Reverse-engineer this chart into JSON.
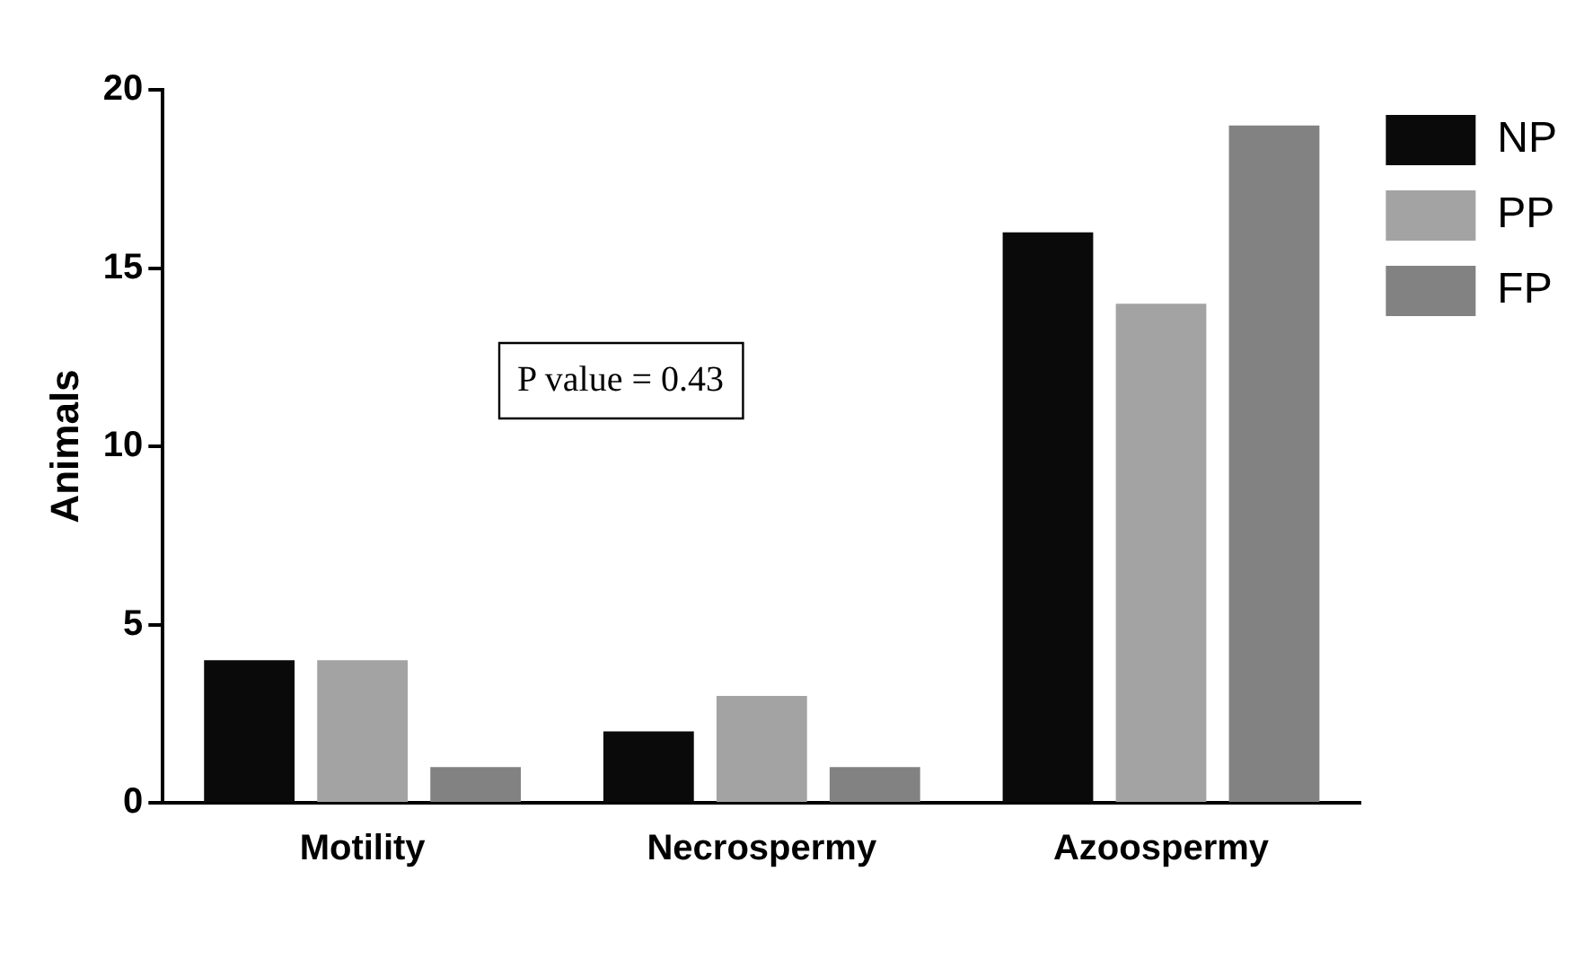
{
  "chart_data": {
    "type": "bar",
    "ylabel": "Animals",
    "categories": [
      "Motility",
      "Necrospermy",
      "Azoospermy"
    ],
    "series": [
      {
        "name": "NP",
        "color": "#0a0a0a",
        "values": [
          4,
          2,
          16
        ]
      },
      {
        "name": "PP",
        "color": "#a3a3a3",
        "values": [
          4,
          3,
          14
        ]
      },
      {
        "name": "FP",
        "color": "#828282",
        "values": [
          1,
          1,
          19
        ]
      }
    ],
    "ylim": [
      0,
      20
    ],
    "yticks": [
      0,
      5,
      10,
      15,
      20
    ],
    "grid": false,
    "legend": "top right",
    "annotations": [
      "P value = 0.43"
    ]
  }
}
